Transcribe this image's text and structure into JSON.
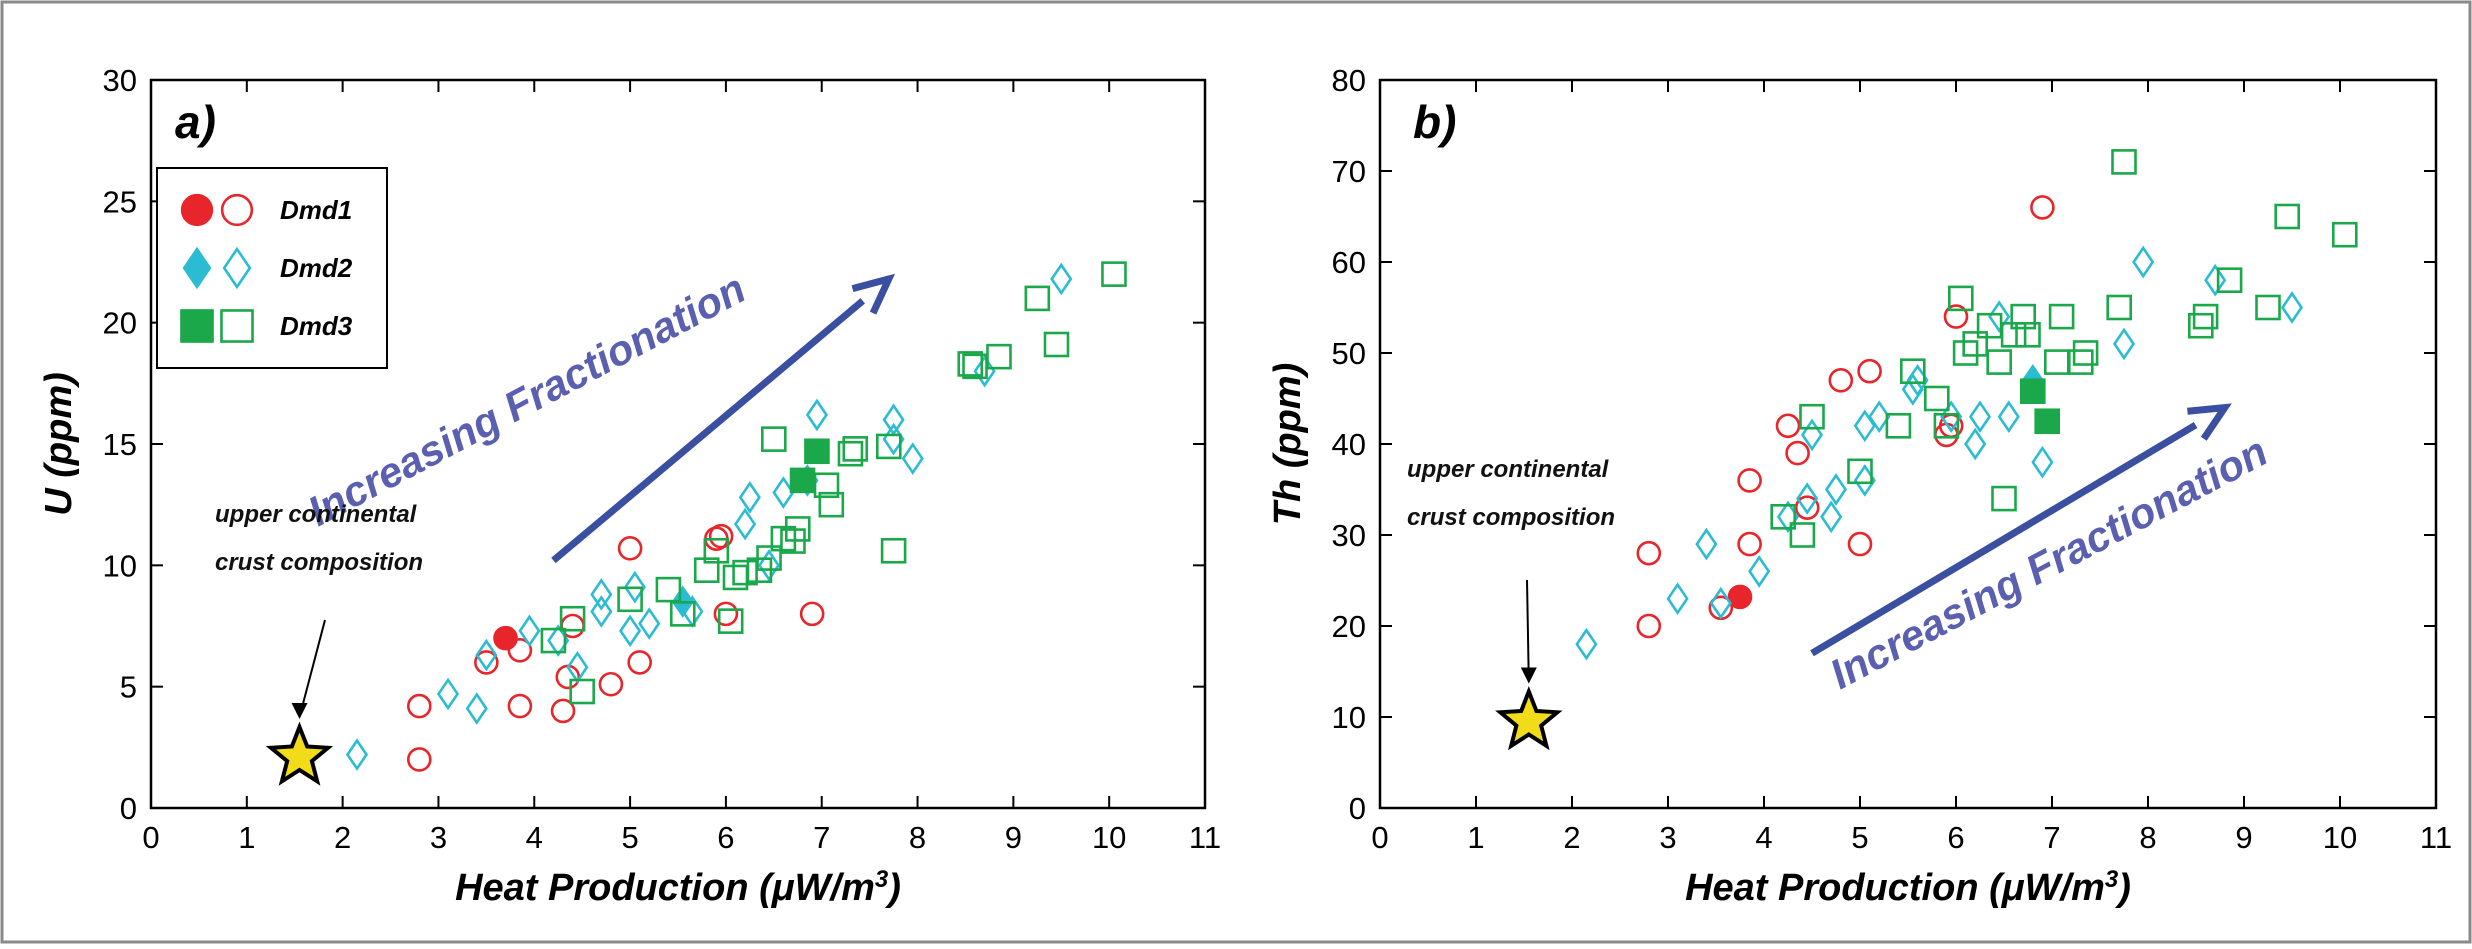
{
  "chart_data": [
    {
      "type": "scatter",
      "panel_label": "a)",
      "ylabel_main": "U",
      "ylabel_unit": " (ppm)",
      "xlabel_main": "Heat Production (μW/m",
      "xlabel_sup": "3",
      "xlabel_close": ")",
      "xlim": [
        0,
        11
      ],
      "ylim": [
        0,
        30
      ],
      "xticks": [
        "0",
        "1",
        "2",
        "3",
        "4",
        "5",
        "6",
        "7",
        "8",
        "9",
        "10",
        "11"
      ],
      "yticks": [
        "0",
        "5",
        "10",
        "15",
        "20",
        "25",
        "30"
      ],
      "annotation_lines": [
        "upper continental",
        "crust composition"
      ],
      "annotation_point": [
        1.55,
        2.1
      ],
      "fractionation_label": "Increasing Fractionation",
      "fractionation_arrow": [
        [
          4.2,
          10.2
        ],
        [
          7.7,
          21.8
        ]
      ],
      "legend": [
        {
          "name": "Dmd1",
          "shape": "circle"
        },
        {
          "name": "Dmd2",
          "shape": "diamond"
        },
        {
          "name": "Dmd3",
          "shape": "square"
        }
      ],
      "series": [
        {
          "name": "Dmd1",
          "shape": "circle",
          "filled": true,
          "points": [
            [
              3.7,
              7.0
            ]
          ]
        },
        {
          "name": "Dmd1",
          "shape": "circle",
          "filled": false,
          "points": [
            [
              2.8,
              4.2
            ],
            [
              2.8,
              2.0
            ],
            [
              3.5,
              6.0
            ],
            [
              3.85,
              6.5
            ],
            [
              3.85,
              4.2
            ],
            [
              4.3,
              4.0
            ],
            [
              4.35,
              5.4
            ],
            [
              4.4,
              7.5
            ],
            [
              4.8,
              5.1
            ],
            [
              5.0,
              10.7
            ],
            [
              5.1,
              6.0
            ],
            [
              5.9,
              11.1
            ],
            [
              5.95,
              11.2
            ],
            [
              6.0,
              8.0
            ],
            [
              6.9,
              8.0
            ]
          ]
        },
        {
          "name": "Dmd2",
          "shape": "diamond",
          "filled": true,
          "points": [
            [
              5.55,
              8.5
            ]
          ]
        },
        {
          "name": "Dmd2",
          "shape": "diamond",
          "filled": false,
          "points": [
            [
              2.15,
              2.2
            ],
            [
              3.1,
              4.7
            ],
            [
              3.4,
              4.1
            ],
            [
              3.5,
              6.3
            ],
            [
              3.95,
              7.3
            ],
            [
              4.25,
              6.9
            ],
            [
              4.45,
              5.8
            ],
            [
              4.7,
              8.8
            ],
            [
              4.7,
              8.1
            ],
            [
              5.0,
              7.3
            ],
            [
              5.05,
              9.1
            ],
            [
              5.2,
              7.6
            ],
            [
              5.65,
              8.1
            ],
            [
              6.2,
              11.7
            ],
            [
              6.25,
              12.8
            ],
            [
              6.45,
              10.0
            ],
            [
              6.6,
              13.0
            ],
            [
              6.85,
              13.5
            ],
            [
              6.95,
              16.2
            ],
            [
              7.75,
              16.0
            ],
            [
              7.75,
              15.2
            ],
            [
              7.95,
              14.4
            ],
            [
              8.7,
              18.0
            ],
            [
              9.5,
              21.8
            ]
          ]
        },
        {
          "name": "Dmd3",
          "shape": "square",
          "filled": true,
          "points": [
            [
              6.8,
              13.5
            ],
            [
              6.95,
              14.7
            ]
          ]
        },
        {
          "name": "Dmd3",
          "shape": "square",
          "filled": false,
          "points": [
            [
              4.2,
              6.9
            ],
            [
              4.4,
              7.8
            ],
            [
              4.5,
              4.8
            ],
            [
              5.0,
              8.6
            ],
            [
              5.4,
              9.0
            ],
            [
              5.55,
              8.0
            ],
            [
              5.8,
              9.8
            ],
            [
              5.9,
              10.6
            ],
            [
              6.05,
              7.7
            ],
            [
              6.1,
              9.5
            ],
            [
              6.2,
              9.7
            ],
            [
              6.35,
              9.8
            ],
            [
              6.45,
              10.3
            ],
            [
              6.5,
              15.2
            ],
            [
              6.6,
              11.1
            ],
            [
              6.7,
              11.0
            ],
            [
              6.75,
              11.5
            ],
            [
              7.05,
              13.3
            ],
            [
              7.1,
              12.5
            ],
            [
              7.3,
              14.6
            ],
            [
              7.35,
              14.8
            ],
            [
              7.7,
              14.9
            ],
            [
              7.75,
              10.6
            ],
            [
              8.55,
              18.3
            ],
            [
              8.6,
              18.2
            ],
            [
              8.85,
              18.6
            ],
            [
              9.25,
              21.0
            ],
            [
              9.45,
              19.1
            ],
            [
              10.05,
              22.0
            ]
          ]
        }
      ]
    },
    {
      "type": "scatter",
      "panel_label": "b)",
      "ylabel_main": "Th",
      "ylabel_unit": " (ppm)",
      "xlabel_main": "Heat Production (μW/m",
      "xlabel_sup": "3",
      "xlabel_close": ")",
      "xlim": [
        0,
        11
      ],
      "ylim": [
        0,
        80
      ],
      "xticks": [
        "0",
        "1",
        "2",
        "3",
        "4",
        "5",
        "6",
        "7",
        "8",
        "9",
        "10",
        "11"
      ],
      "yticks": [
        "0",
        "10",
        "20",
        "30",
        "40",
        "50",
        "60",
        "70",
        "80"
      ],
      "annotation_lines": [
        "upper continental",
        "crust composition"
      ],
      "annotation_point": [
        1.55,
        9.5
      ],
      "fractionation_label": "Increasing Fractionation",
      "fractionation_arrow": [
        [
          4.5,
          17.0
        ],
        [
          8.8,
          44.0
        ]
      ],
      "series": [
        {
          "name": "Dmd1",
          "shape": "circle",
          "filled": true,
          "points": [
            [
              3.75,
              23.2
            ]
          ]
        },
        {
          "name": "Dmd1",
          "shape": "circle",
          "filled": false,
          "points": [
            [
              2.8,
              28.0
            ],
            [
              2.8,
              20.0
            ],
            [
              3.55,
              22.0
            ],
            [
              3.85,
              36.0
            ],
            [
              3.85,
              29.0
            ],
            [
              4.25,
              42.0
            ],
            [
              4.35,
              39.0
            ],
            [
              4.45,
              33.0
            ],
            [
              4.8,
              47.0
            ],
            [
              5.0,
              29.0
            ],
            [
              5.1,
              48.0
            ],
            [
              5.9,
              41.0
            ],
            [
              5.95,
              42.0
            ],
            [
              6.0,
              54.0
            ],
            [
              6.9,
              66.0
            ]
          ]
        },
        {
          "name": "Dmd2",
          "shape": "diamond",
          "filled": true,
          "points": [
            [
              6.8,
              47.0
            ]
          ]
        },
        {
          "name": "Dmd2",
          "shape": "diamond",
          "filled": false,
          "points": [
            [
              2.15,
              18.0
            ],
            [
              3.1,
              23.0
            ],
            [
              3.4,
              29.0
            ],
            [
              3.55,
              22.5
            ],
            [
              3.95,
              26.0
            ],
            [
              4.25,
              32.0
            ],
            [
              4.45,
              34.0
            ],
            [
              4.5,
              41.0
            ],
            [
              4.7,
              32.0
            ],
            [
              4.75,
              35.0
            ],
            [
              5.05,
              36.0
            ],
            [
              5.05,
              42.0
            ],
            [
              5.2,
              43.0
            ],
            [
              5.55,
              46.0
            ],
            [
              5.6,
              47.0
            ],
            [
              5.95,
              43.0
            ],
            [
              6.2,
              40.0
            ],
            [
              6.25,
              43.0
            ],
            [
              6.45,
              54.0
            ],
            [
              6.55,
              43.0
            ],
            [
              6.9,
              38.0
            ],
            [
              7.75,
              51.0
            ],
            [
              7.95,
              60.0
            ],
            [
              8.7,
              58.0
            ],
            [
              9.5,
              55.0
            ]
          ]
        },
        {
          "name": "Dmd3",
          "shape": "square",
          "filled": true,
          "points": [
            [
              6.8,
              45.8
            ],
            [
              6.95,
              42.5
            ]
          ]
        },
        {
          "name": "Dmd3",
          "shape": "square",
          "filled": false,
          "points": [
            [
              4.2,
              32.0
            ],
            [
              4.4,
              30.0
            ],
            [
              4.5,
              43.0
            ],
            [
              5.0,
              37.0
            ],
            [
              5.4,
              42.0
            ],
            [
              5.55,
              48.0
            ],
            [
              5.8,
              45.0
            ],
            [
              5.9,
              42.0
            ],
            [
              6.05,
              56.0
            ],
            [
              6.1,
              50.0
            ],
            [
              6.2,
              51.0
            ],
            [
              6.35,
              53.0
            ],
            [
              6.45,
              49.0
            ],
            [
              6.5,
              34.0
            ],
            [
              6.6,
              52.0
            ],
            [
              6.7,
              54.0
            ],
            [
              6.75,
              52.0
            ],
            [
              7.05,
              49.0
            ],
            [
              7.1,
              54.0
            ],
            [
              7.3,
              49.0
            ],
            [
              7.35,
              50.0
            ],
            [
              7.7,
              55.0
            ],
            [
              7.75,
              71.0
            ],
            [
              8.55,
              53.0
            ],
            [
              8.6,
              54.0
            ],
            [
              8.85,
              58.0
            ],
            [
              9.25,
              55.0
            ],
            [
              9.45,
              65.0
            ],
            [
              10.05,
              63.0
            ]
          ]
        }
      ]
    }
  ],
  "colors": {
    "dmd1": "#e8252a",
    "dmd2": "#2bbcd4",
    "dmd3": "#1aa84a",
    "arrow": "#3b4fa0",
    "star_fill": "#f2dc1a",
    "axis": "#000000"
  }
}
